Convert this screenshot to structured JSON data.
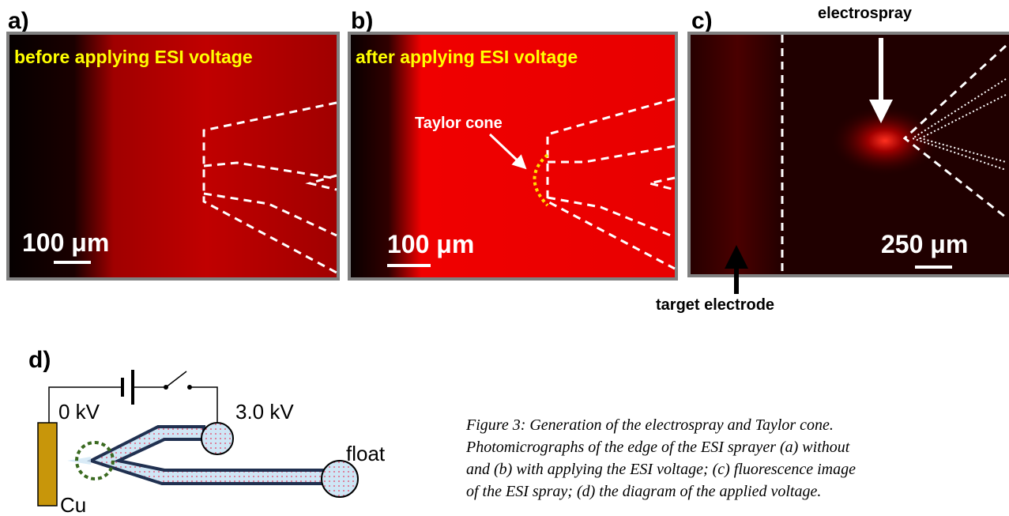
{
  "panels": [
    {
      "label": "a)",
      "overlay": "before applying  ESI voltage",
      "scale_bar": "100 μm"
    },
    {
      "label": "b)",
      "overlay": "after applying  ESI voltage",
      "annotation": "Taylor cone",
      "scale_bar": "100 μm"
    },
    {
      "label": "c)",
      "annotations": [
        "electrospray",
        "target electrode"
      ],
      "scale_bar": "250 μm"
    }
  ],
  "diagram": {
    "label": "d)",
    "left_voltage": "0 kV",
    "right_voltage": "3.0 kV",
    "float": "float",
    "electrode": "Cu"
  },
  "caption": {
    "lines": [
      "Figure 3:  Generation of the electrospray and Taylor cone.",
      "Photomicrographs of the edge of the ESI sprayer (a) without",
      "and (b) with applying the ESI voltage; (c) fluorescence image",
      "of the ESI spray; (d) the diagram of the applied voltage."
    ]
  }
}
